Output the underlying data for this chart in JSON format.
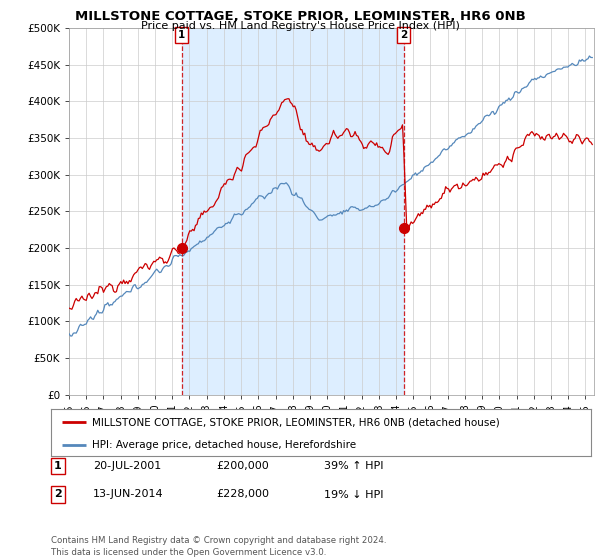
{
  "title": "MILLSTONE COTTAGE, STOKE PRIOR, LEOMINSTER, HR6 0NB",
  "subtitle": "Price paid vs. HM Land Registry's House Price Index (HPI)",
  "ylabel_ticks": [
    "£0",
    "£50K",
    "£100K",
    "£150K",
    "£200K",
    "£250K",
    "£300K",
    "£350K",
    "£400K",
    "£450K",
    "£500K"
  ],
  "ytick_values": [
    0,
    50000,
    100000,
    150000,
    200000,
    250000,
    300000,
    350000,
    400000,
    450000,
    500000
  ],
  "ylim": [
    0,
    500000
  ],
  "xlim_start": 1995.0,
  "xlim_end": 2025.5,
  "red_color": "#cc0000",
  "blue_color": "#5588bb",
  "blue_fill_color": "#ddeeff",
  "marker1_x": 2001.54,
  "marker1_y": 200000,
  "marker2_x": 2014.45,
  "marker2_y": 228000,
  "legend_line1": "MILLSTONE COTTAGE, STOKE PRIOR, LEOMINSTER, HR6 0NB (detached house)",
  "legend_line2": "HPI: Average price, detached house, Herefordshire",
  "footer": "Contains HM Land Registry data © Crown copyright and database right 2024.\nThis data is licensed under the Open Government Licence v3.0.",
  "background_color": "#ffffff",
  "grid_color": "#cccccc"
}
